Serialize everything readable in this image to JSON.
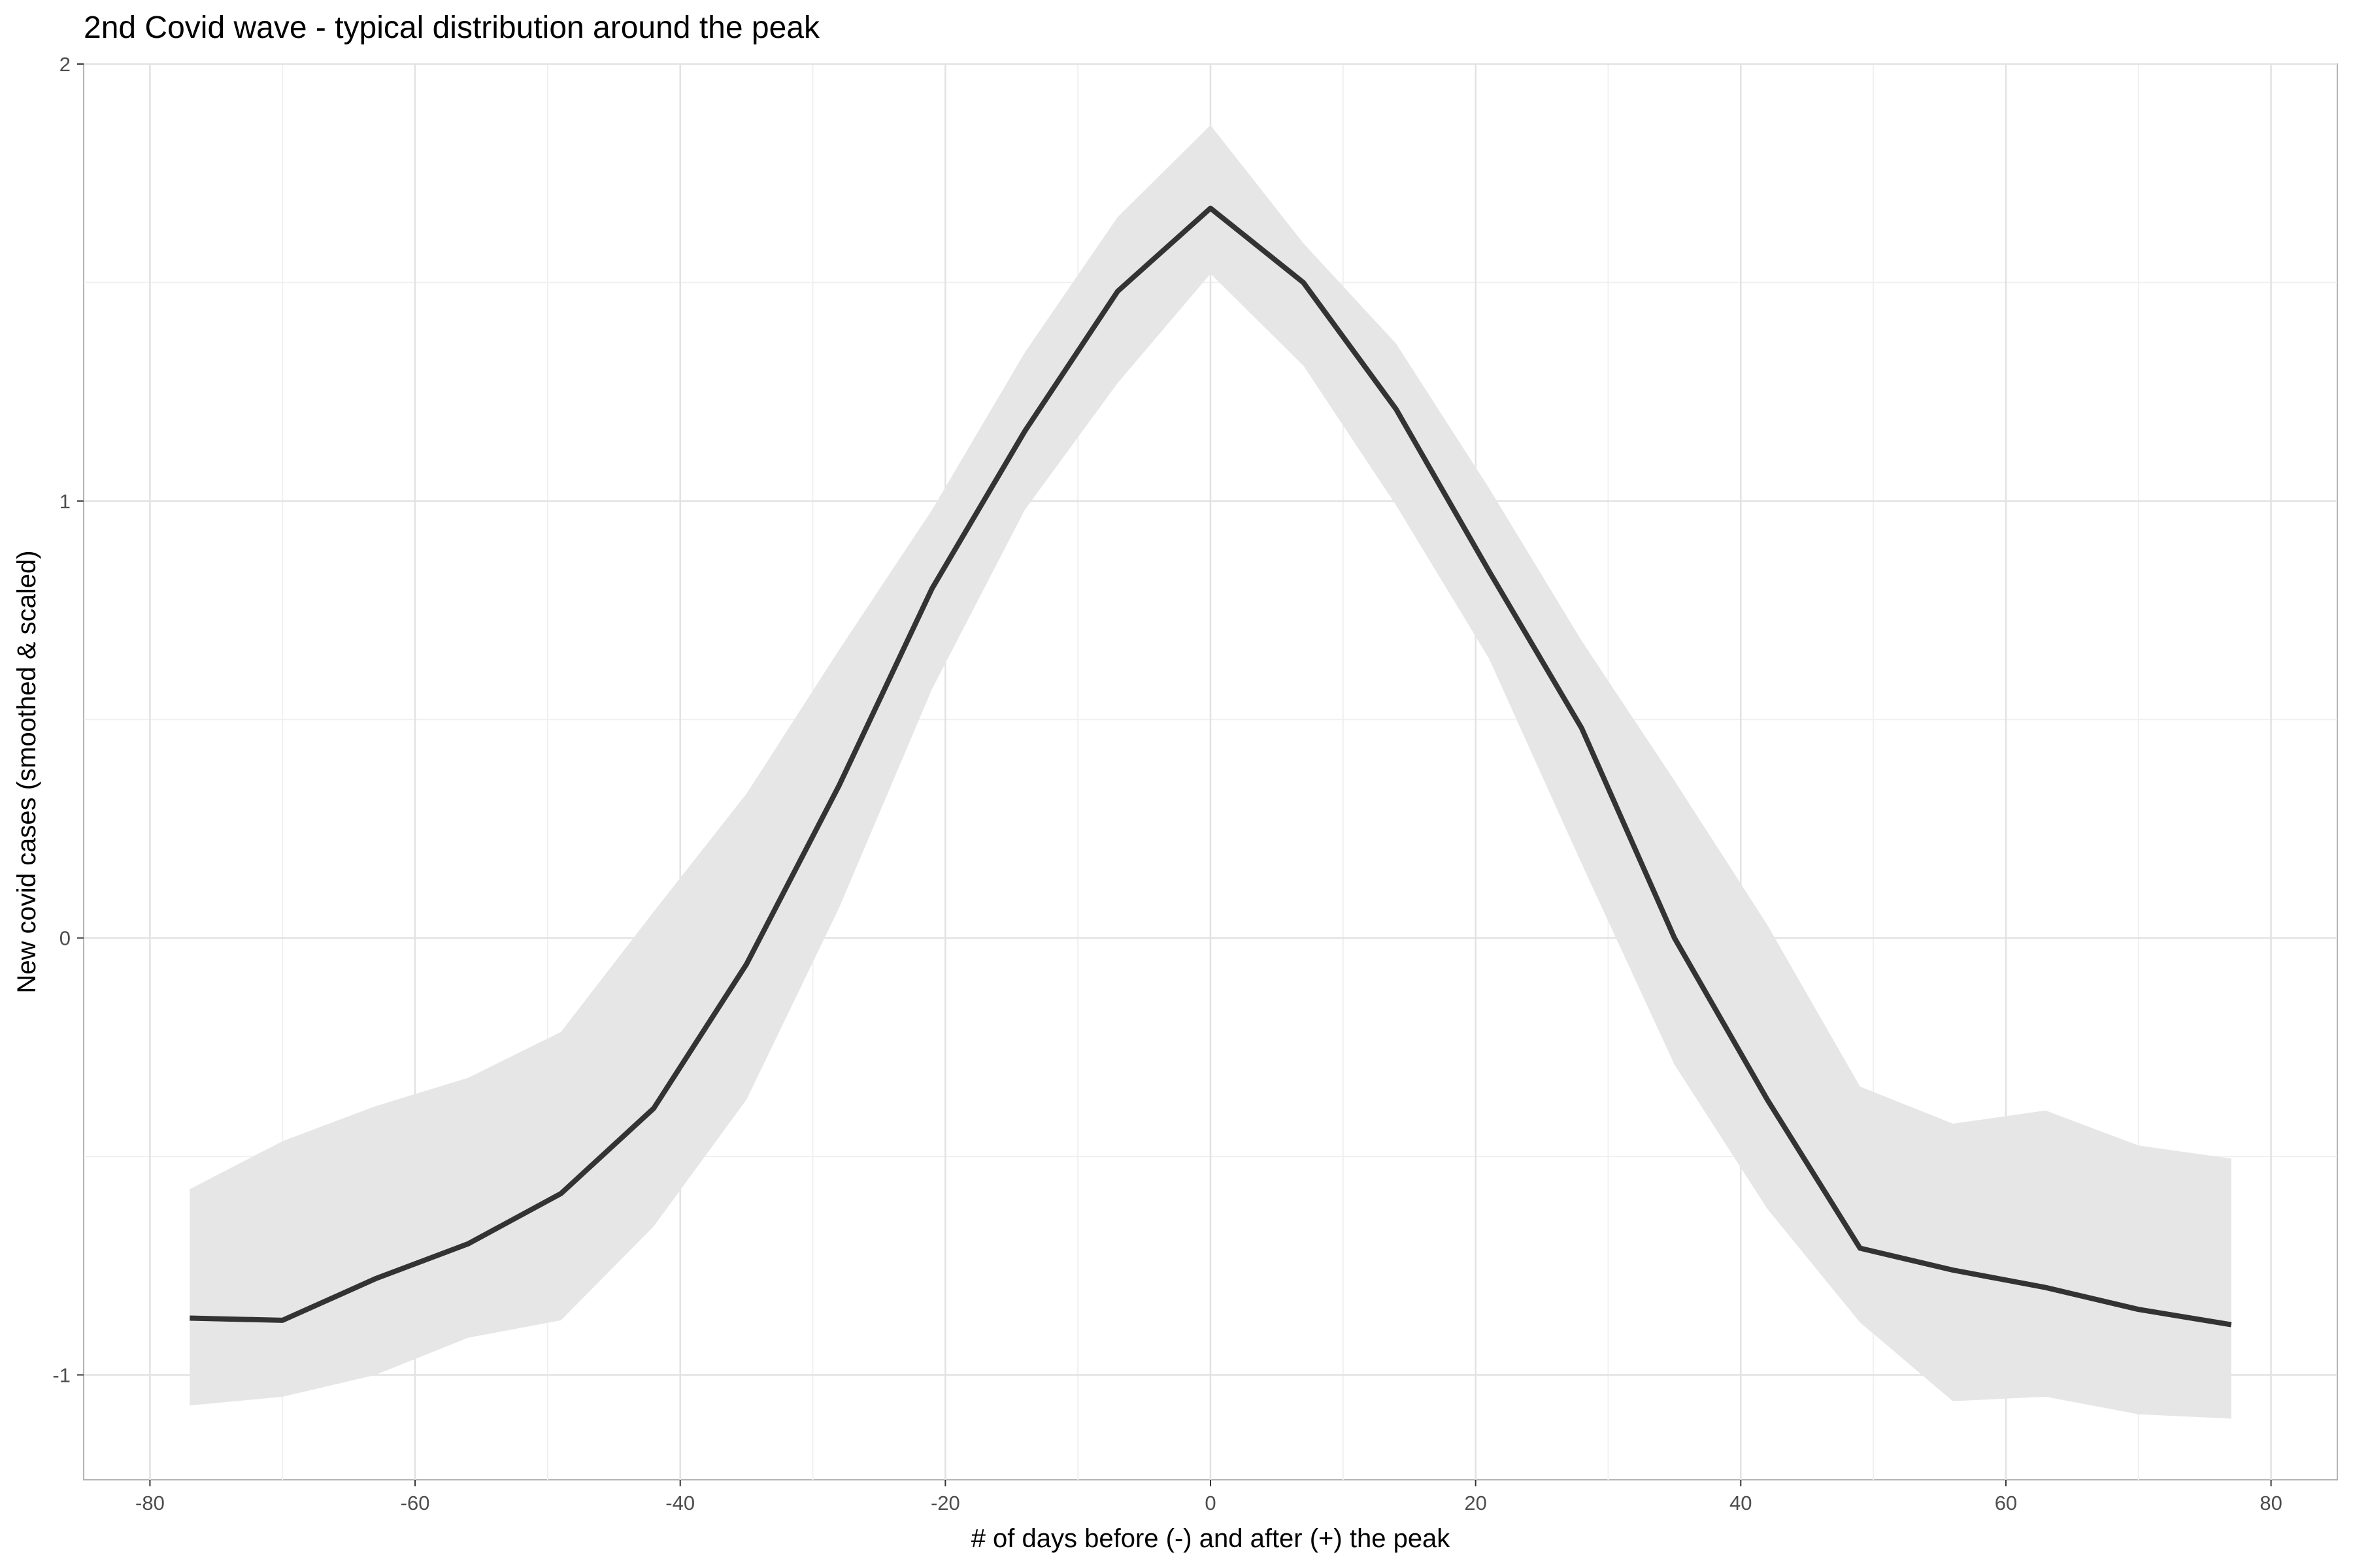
{
  "chart_data": {
    "type": "line",
    "title": "2nd Covid wave - typical distribution around the peak",
    "xlabel": "# of days before (-) and after (+) the peak",
    "ylabel": "New covid cases (smoothed & scaled)",
    "xlim": [
      -85,
      85
    ],
    "ylim": [
      -1.24,
      2.0
    ],
    "x_ticks": [
      -80,
      -60,
      -40,
      -20,
      0,
      20,
      40,
      60,
      80
    ],
    "x_tick_labels": [
      "-80",
      "-60",
      "-40",
      "-20",
      "0",
      "20",
      "40",
      "60",
      "80"
    ],
    "y_ticks": [
      -1,
      0,
      1,
      2
    ],
    "y_tick_labels": [
      "-1",
      "0",
      "1",
      "2"
    ],
    "x_minor_ticks": [
      -70,
      -50,
      -30,
      -10,
      10,
      30,
      50,
      70
    ],
    "y_minor_ticks": [
      -0.5,
      0.5,
      1.5
    ],
    "grid": true,
    "legend": "none",
    "line_color": "#333333",
    "band_color": "#e6e6e6",
    "x": [
      -77,
      -70,
      -63,
      -56,
      -49,
      -42,
      -35,
      -28,
      -21,
      -14,
      -7,
      0,
      7,
      14,
      21,
      28,
      35,
      42,
      49,
      56,
      63,
      70,
      77
    ],
    "series": [
      {
        "values": [
          -0.87,
          -0.875,
          -0.78,
          -0.7,
          -0.585,
          -0.39,
          -0.06,
          0.35,
          0.8,
          1.16,
          1.48,
          1.67,
          1.5,
          1.21,
          0.84,
          0.48,
          0.0,
          -0.37,
          -0.71,
          -0.76,
          -0.8,
          -0.85,
          -0.885
        ],
        "lower": [
          -1.07,
          -1.05,
          -1.0,
          -0.915,
          -0.875,
          -0.66,
          -0.37,
          0.07,
          0.57,
          0.98,
          1.27,
          1.52,
          1.31,
          0.99,
          0.64,
          0.17,
          -0.29,
          -0.62,
          -0.88,
          -1.06,
          -1.05,
          -1.09,
          -1.1
        ],
        "upper": [
          -0.575,
          -0.465,
          -0.385,
          -0.32,
          -0.215,
          0.06,
          0.33,
          0.66,
          0.98,
          1.34,
          1.65,
          1.86,
          1.59,
          1.36,
          1.03,
          0.68,
          0.36,
          0.03,
          -0.34,
          -0.425,
          -0.395,
          -0.475,
          -0.505
        ]
      }
    ]
  }
}
